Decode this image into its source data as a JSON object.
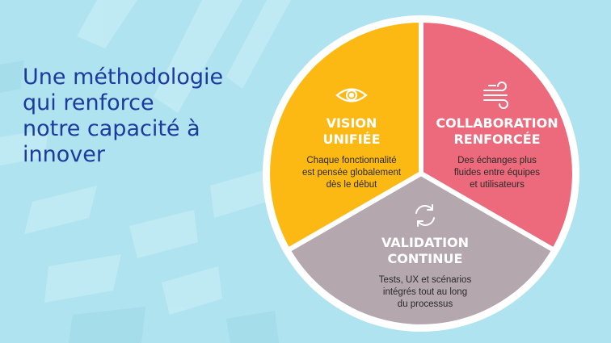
{
  "headline": {
    "lines": [
      "Une méthodologie",
      "qui renforce",
      "notre capacité à",
      "innover"
    ]
  },
  "colors": {
    "background": "#aee3ef",
    "headline": "#1d3a9e",
    "vision": "#fdb913",
    "collaboration": "#ec6a7b",
    "validation": "#b4a7ad",
    "ring": "#ffffff"
  },
  "segments": [
    {
      "id": "vision",
      "icon": "eye-icon",
      "title_lines": [
        "VISION",
        "UNIFIÉE"
      ],
      "text_lines": [
        "Chaque fonctionnalité",
        "est pensée globalement",
        "dès le début"
      ]
    },
    {
      "id": "collaboration",
      "icon": "wind-icon",
      "title_lines": [
        "COLLABORATION",
        "RENFORCÉE"
      ],
      "text_lines": [
        "Des échanges plus",
        "fluides entre équipes",
        "et utilisateurs"
      ]
    },
    {
      "id": "validation",
      "icon": "refresh-cycle-icon",
      "title_lines": [
        "VALIDATION",
        "CONTINUE"
      ],
      "text_lines": [
        "Tests, UX et scénarios",
        "intégrés tout au long",
        "du processus"
      ]
    }
  ]
}
